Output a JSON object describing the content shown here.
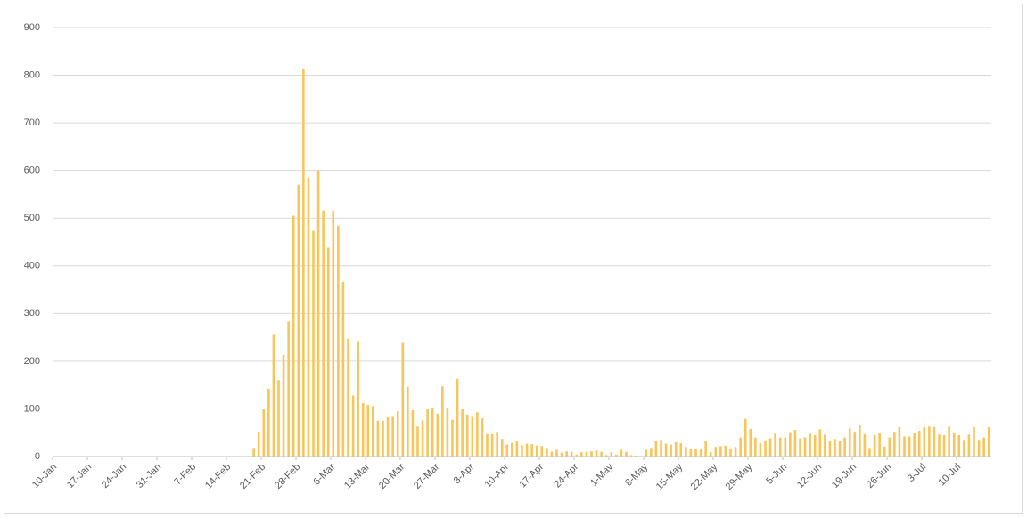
{
  "chart_data": {
    "type": "bar",
    "categories": [
      "10-Jan",
      null,
      null,
      null,
      null,
      null,
      null,
      "17-Jan",
      null,
      null,
      null,
      null,
      null,
      null,
      "24-Jan",
      null,
      null,
      null,
      null,
      null,
      null,
      "31-Jan",
      null,
      null,
      null,
      null,
      null,
      null,
      "7-Feb",
      null,
      null,
      null,
      null,
      null,
      null,
      "14-Feb",
      null,
      null,
      null,
      null,
      null,
      null,
      "21-Feb",
      null,
      null,
      null,
      null,
      null,
      null,
      "28-Feb",
      null,
      null,
      null,
      null,
      null,
      null,
      "6-Mar",
      null,
      null,
      null,
      null,
      null,
      null,
      "13-Mar",
      null,
      null,
      null,
      null,
      null,
      null,
      "20-Mar",
      null,
      null,
      null,
      null,
      null,
      null,
      "27-Mar",
      null,
      null,
      null,
      null,
      null,
      null,
      "3-Apr",
      null,
      null,
      null,
      null,
      null,
      null,
      "10-Apr",
      null,
      null,
      null,
      null,
      null,
      null,
      "17-Apr",
      null,
      null,
      null,
      null,
      null,
      null,
      "24-Apr",
      null,
      null,
      null,
      null,
      null,
      null,
      "1-May",
      null,
      null,
      null,
      null,
      null,
      null,
      "8-May",
      null,
      null,
      null,
      null,
      null,
      null,
      "15-May",
      null,
      null,
      null,
      null,
      null,
      null,
      "22-May",
      null,
      null,
      null,
      null,
      null,
      null,
      "29-May",
      null,
      null,
      null,
      null,
      null,
      null,
      "5-Jun",
      null,
      null,
      null,
      null,
      null,
      null,
      "12-Jun",
      null,
      null,
      null,
      null,
      null,
      null,
      "19-Jun",
      null,
      null,
      null,
      null,
      null,
      null,
      "26-Jun",
      null,
      null,
      null,
      null,
      null,
      null,
      "3-Jul",
      null,
      null,
      null,
      null,
      null,
      null,
      "10-Jul",
      null,
      null,
      null,
      null,
      null,
      null
    ],
    "values": [
      0,
      0,
      0,
      0,
      0,
      0,
      0,
      0,
      0,
      0,
      0,
      0,
      0,
      0,
      0,
      0,
      0,
      0,
      0,
      0,
      0,
      0,
      0,
      0,
      0,
      0,
      0,
      0,
      0,
      0,
      0,
      0,
      0,
      0,
      0,
      0,
      0,
      0,
      0,
      0,
      18,
      52,
      100,
      142,
      257,
      160,
      213,
      283,
      505,
      570,
      813,
      585,
      475,
      600,
      516,
      438,
      516,
      484,
      366,
      247,
      128,
      242,
      112,
      108,
      106,
      75,
      75,
      83,
      85,
      95,
      240,
      146,
      97,
      63,
      76,
      100,
      103,
      90,
      147,
      103,
      77,
      163,
      100,
      88,
      85,
      93,
      80,
      47,
      47,
      52,
      37,
      25,
      29,
      32,
      24,
      27,
      26,
      23,
      22,
      18,
      10,
      14,
      8,
      11,
      10,
      4,
      9,
      10,
      11,
      13,
      10,
      3,
      9,
      4,
      14,
      10,
      3,
      2,
      1,
      14,
      18,
      32,
      35,
      27,
      25,
      30,
      28,
      20,
      16,
      15,
      16,
      32,
      9,
      20,
      22,
      23,
      17,
      20,
      40,
      79,
      58,
      40,
      28,
      34,
      38,
      48,
      40,
      40,
      51,
      56,
      38,
      40,
      48,
      45,
      57,
      46,
      32,
      37,
      33,
      40,
      59,
      52,
      66,
      47,
      18,
      45,
      50,
      21,
      40,
      52,
      62,
      42,
      42,
      50,
      54,
      62,
      63,
      62,
      46,
      45,
      63,
      50,
      45,
      35,
      46,
      62,
      35,
      40,
      62
    ],
    "color": "#f9c55a",
    "ylim": [
      0,
      900
    ],
    "yticks": [
      0,
      100,
      200,
      300,
      400,
      500,
      600,
      700,
      800,
      900
    ],
    "grid": true
  }
}
